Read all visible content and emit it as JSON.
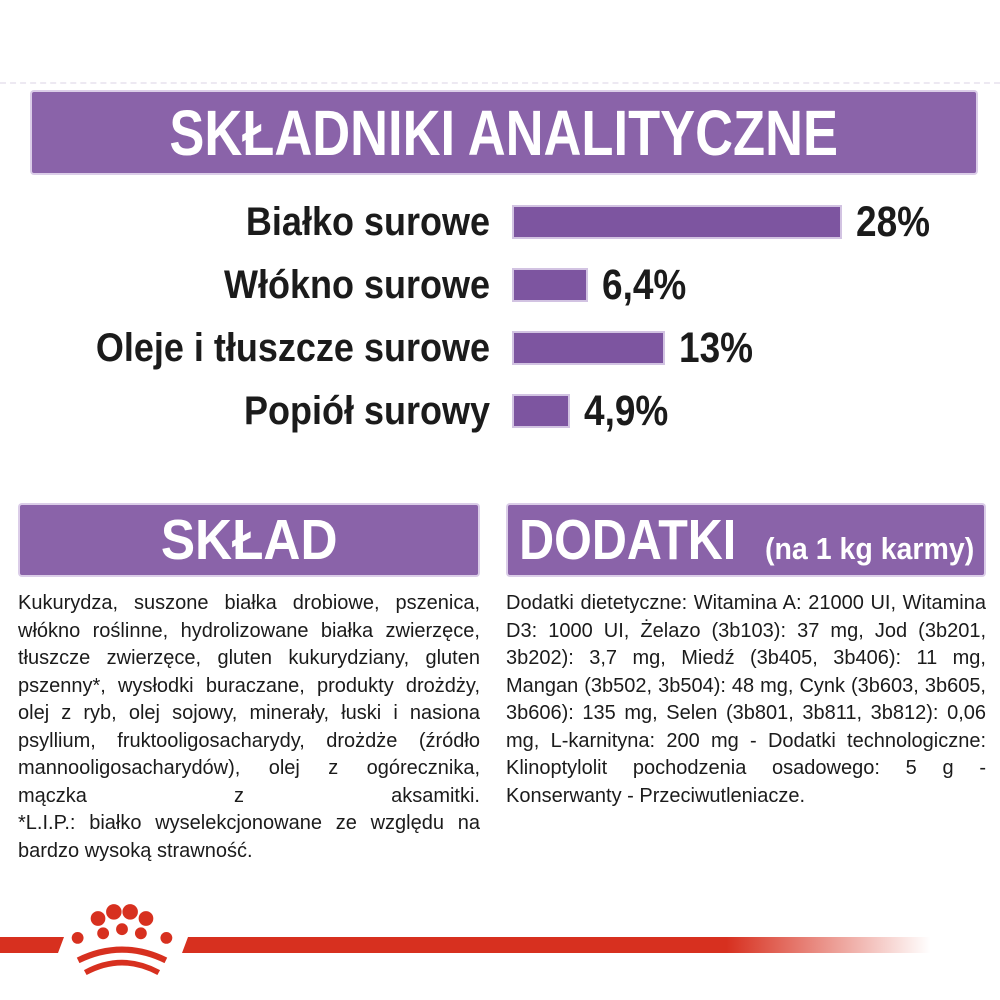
{
  "colors": {
    "red": "#d7301f",
    "banner_purple": "#8a63a9",
    "bar_purple": "#7d55a0",
    "bar_border": "#d2c3e2",
    "text": "#1b1b1b"
  },
  "header": {
    "title": "SKŁADNIKI ANALITYCZNE"
  },
  "chart_data": {
    "type": "bar",
    "orientation": "horizontal",
    "title": "SKŁADNIKI ANALITYCZNE",
    "categories": [
      "Białko surowe",
      "Włókno surowe",
      "Oleje i tłuszcze surowe",
      "Popiół surowy"
    ],
    "values": [
      28,
      6.4,
      13,
      4.9
    ],
    "value_labels": [
      "28%",
      "6,4%",
      "13%",
      "4,9%"
    ],
    "unit": "%",
    "xlim": [
      0,
      30
    ],
    "grid": false,
    "bar_color": "#7d55a0",
    "value_label_position": "right-of-bar"
  },
  "sections": {
    "sklad": {
      "title": "SKŁAD",
      "body": "Kukurydza, suszone białka drobiowe, pszenica, włókno roślinne, hydrolizowane białka zwierzęce, tłuszcze zwierzęce, gluten kukurydziany, gluten pszenny*, wysłodki buraczane, produkty drożdży, olej z ryb, olej sojowy, minerały, łuski i nasiona psyllium, fruktooligosacharydy, drożdże (źródło mannooligosacharydów), olej z ogórecznika, mączka z aksamitki.",
      "note": "*L.I.P.: białko wyselekcjonowane ze względu na bardzo wysoką strawność."
    },
    "dodatki": {
      "title": "DODATKI",
      "subtitle": "(na 1 kg karmy)",
      "body": "Dodatki dietetyczne: Witamina A: 21000 UI, Witamina D3: 1000 UI, Żelazo (3b103): 37 mg, Jod (3b201, 3b202): 3,7 mg, Miedź (3b405, 3b406): 11 mg, Mangan (3b502, 3b504): 48 mg, Cynk (3b603, 3b605, 3b606): 135 mg, Selen (3b801, 3b811, 3b812): 0,06 mg, L-karnityna: 200 mg - Dodatki technologiczne: Klinoptylolit pochodzenia osadowego: 5 g - Konserwanty - Przeciwutleniacze."
    }
  },
  "footer": {
    "logo": "royal-canin-crown"
  }
}
